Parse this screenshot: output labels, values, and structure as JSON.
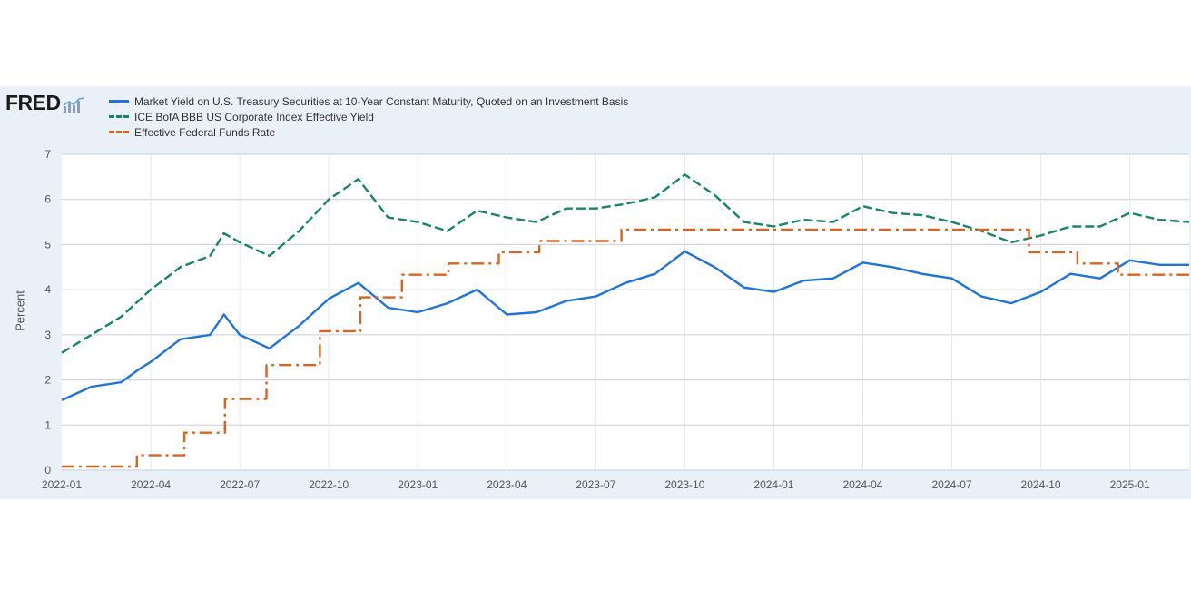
{
  "logo": {
    "text": "FRED"
  },
  "colors": {
    "series1": "#1e74d9",
    "series2": "#16856a",
    "series3": "#d9641e",
    "panel": "#e9f0f8",
    "grid": "#c8ccd2"
  },
  "chart_data": {
    "type": "line",
    "title": "",
    "xlabel": "",
    "ylabel": "Percent",
    "ylim": [
      0,
      7
    ],
    "yticks": [
      "0",
      "1",
      "2",
      "3",
      "4",
      "5",
      "6",
      "7"
    ],
    "xticks": [
      "2022-01",
      "2022-04",
      "2022-07",
      "2022-10",
      "2023-01",
      "2023-04",
      "2023-07",
      "2023-10",
      "2024-01",
      "2024-04",
      "2024-07",
      "2024-10",
      "2025-01"
    ],
    "xrange": [
      "2022-01",
      "2025-03"
    ],
    "grid": true,
    "legend_position": "top-left",
    "series": [
      {
        "name": "Market Yield on U.S. Treasury Securities at 10-Year Constant Maturity, Quoted on an Investment Basis",
        "style": "solid",
        "points": [
          [
            "2022-01",
            1.55
          ],
          [
            "2022-02",
            1.85
          ],
          [
            "2022-03",
            1.95
          ],
          [
            "2022-03-20",
            2.25
          ],
          [
            "2022-04",
            2.4
          ],
          [
            "2022-05",
            2.9
          ],
          [
            "2022-06",
            3.0
          ],
          [
            "2022-06-15",
            3.45
          ],
          [
            "2022-07",
            3.0
          ],
          [
            "2022-08",
            2.7
          ],
          [
            "2022-09",
            3.2
          ],
          [
            "2022-10",
            3.8
          ],
          [
            "2022-11",
            4.15
          ],
          [
            "2022-12",
            3.6
          ],
          [
            "2023-01",
            3.5
          ],
          [
            "2023-02",
            3.7
          ],
          [
            "2023-03",
            4.0
          ],
          [
            "2023-04",
            3.45
          ],
          [
            "2023-05",
            3.5
          ],
          [
            "2023-06",
            3.75
          ],
          [
            "2023-07",
            3.85
          ],
          [
            "2023-08",
            4.15
          ],
          [
            "2023-09",
            4.35
          ],
          [
            "2023-10",
            4.85
          ],
          [
            "2023-11",
            4.5
          ],
          [
            "2023-12",
            4.05
          ],
          [
            "2024-01",
            3.95
          ],
          [
            "2024-02",
            4.2
          ],
          [
            "2024-03",
            4.25
          ],
          [
            "2024-04",
            4.6
          ],
          [
            "2024-05",
            4.5
          ],
          [
            "2024-06",
            4.35
          ],
          [
            "2024-07",
            4.25
          ],
          [
            "2024-08",
            3.85
          ],
          [
            "2024-09",
            3.7
          ],
          [
            "2024-10",
            3.95
          ],
          [
            "2024-11",
            4.35
          ],
          [
            "2024-12",
            4.25
          ],
          [
            "2025-01",
            4.65
          ],
          [
            "2025-02",
            4.55
          ],
          [
            "2025-03",
            4.55
          ]
        ]
      },
      {
        "name": "ICE BofA BBB US Corporate Index Effective Yield",
        "style": "dash",
        "points": [
          [
            "2022-01",
            2.6
          ],
          [
            "2022-02",
            3.0
          ],
          [
            "2022-03",
            3.4
          ],
          [
            "2022-04",
            4.0
          ],
          [
            "2022-05",
            4.5
          ],
          [
            "2022-06",
            4.75
          ],
          [
            "2022-06-15",
            5.25
          ],
          [
            "2022-07",
            5.05
          ],
          [
            "2022-08",
            4.75
          ],
          [
            "2022-09",
            5.3
          ],
          [
            "2022-10",
            6.0
          ],
          [
            "2022-11",
            6.45
          ],
          [
            "2022-12",
            5.6
          ],
          [
            "2023-01",
            5.5
          ],
          [
            "2023-02",
            5.3
          ],
          [
            "2023-03",
            5.75
          ],
          [
            "2023-04",
            5.6
          ],
          [
            "2023-05",
            5.5
          ],
          [
            "2023-06",
            5.8
          ],
          [
            "2023-07",
            5.8
          ],
          [
            "2023-08",
            5.9
          ],
          [
            "2023-09",
            6.05
          ],
          [
            "2023-10",
            6.55
          ],
          [
            "2023-11",
            6.1
          ],
          [
            "2023-12",
            5.5
          ],
          [
            "2024-01",
            5.4
          ],
          [
            "2024-02",
            5.55
          ],
          [
            "2024-03",
            5.5
          ],
          [
            "2024-04",
            5.85
          ],
          [
            "2024-05",
            5.7
          ],
          [
            "2024-06",
            5.65
          ],
          [
            "2024-07",
            5.5
          ],
          [
            "2024-08",
            5.3
          ],
          [
            "2024-09",
            5.05
          ],
          [
            "2024-10",
            5.2
          ],
          [
            "2024-11",
            5.4
          ],
          [
            "2024-12",
            5.4
          ],
          [
            "2025-01",
            5.7
          ],
          [
            "2025-02",
            5.55
          ],
          [
            "2025-03",
            5.5
          ]
        ]
      },
      {
        "name": "Effective Federal Funds Rate",
        "style": "dashdot",
        "points": [
          [
            "2022-01",
            0.08
          ],
          [
            "2022-03-17",
            0.08
          ],
          [
            "2022-03-17",
            0.33
          ],
          [
            "2022-05-05",
            0.33
          ],
          [
            "2022-05-05",
            0.83
          ],
          [
            "2022-06-16",
            0.83
          ],
          [
            "2022-06-16",
            1.58
          ],
          [
            "2022-07-28",
            1.58
          ],
          [
            "2022-07-28",
            2.33
          ],
          [
            "2022-09-22",
            2.33
          ],
          [
            "2022-09-22",
            3.08
          ],
          [
            "2022-11-03",
            3.08
          ],
          [
            "2022-11-03",
            3.83
          ],
          [
            "2022-12-15",
            3.83
          ],
          [
            "2022-12-15",
            4.33
          ],
          [
            "2023-02-02",
            4.33
          ],
          [
            "2023-02-02",
            4.58
          ],
          [
            "2023-03-23",
            4.58
          ],
          [
            "2023-03-23",
            4.83
          ],
          [
            "2023-05-04",
            4.83
          ],
          [
            "2023-05-04",
            5.08
          ],
          [
            "2023-07-27",
            5.08
          ],
          [
            "2023-07-27",
            5.33
          ],
          [
            "2024-09-19",
            5.33
          ],
          [
            "2024-09-19",
            4.83
          ],
          [
            "2024-11-08",
            4.83
          ],
          [
            "2024-11-08",
            4.58
          ],
          [
            "2024-12-19",
            4.58
          ],
          [
            "2024-12-19",
            4.33
          ],
          [
            "2025-03",
            4.33
          ]
        ]
      }
    ]
  }
}
